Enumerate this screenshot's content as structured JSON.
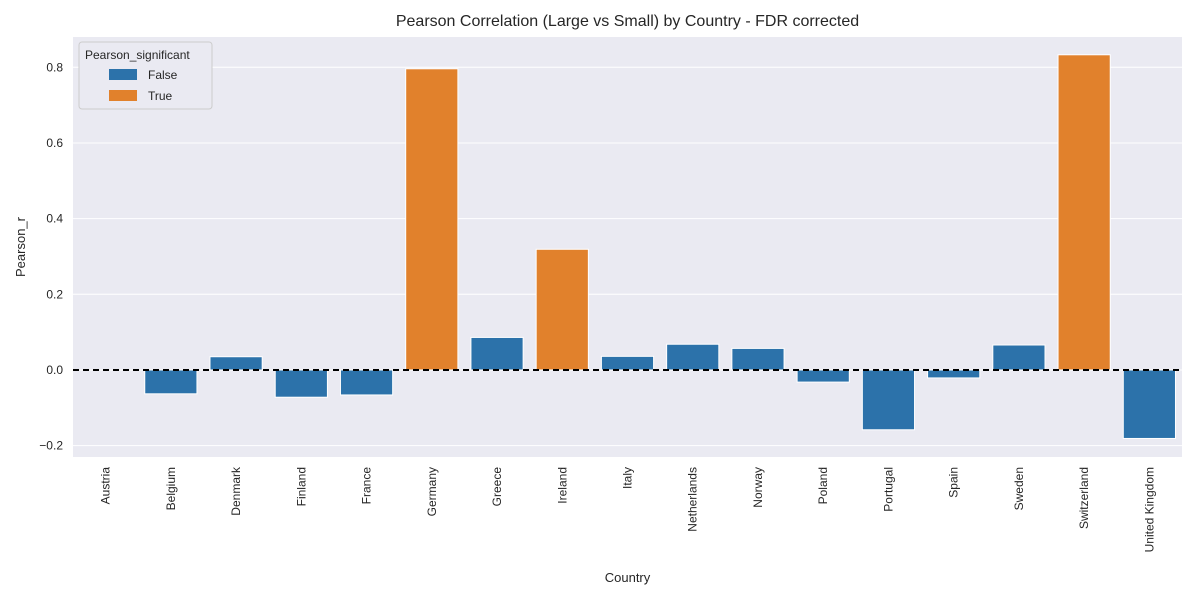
{
  "chart_data": {
    "type": "bar",
    "title": "Pearson Correlation (Large vs Small) by Country - FDR corrected",
    "xlabel": "Country",
    "ylabel": "Pearson_r",
    "categories": [
      "Austria",
      "Belgium",
      "Denmark",
      "Finland",
      "France",
      "Germany",
      "Greece",
      "Ireland",
      "Italy",
      "Netherlands",
      "Norway",
      "Poland",
      "Portugal",
      "Spain",
      "Sweden",
      "Switzerland",
      "United Kingdom"
    ],
    "values": [
      0.0,
      -0.063,
      0.035,
      -0.072,
      -0.066,
      0.796,
      0.086,
      0.319,
      0.036,
      0.068,
      0.057,
      -0.032,
      -0.158,
      -0.021,
      0.066,
      0.833,
      -0.181
    ],
    "significant": [
      false,
      false,
      false,
      false,
      false,
      true,
      false,
      true,
      false,
      false,
      false,
      false,
      false,
      false,
      false,
      true,
      false
    ],
    "ylim": [
      -0.23,
      0.88
    ],
    "yticks": [
      -0.2,
      0.0,
      0.2,
      0.4,
      0.6,
      0.8
    ],
    "ytick_labels": [
      "−0.2",
      "0.0",
      "0.2",
      "0.4",
      "0.6",
      "0.8"
    ],
    "reference_line": {
      "y": 0.0,
      "style": "dashed",
      "color": "#000000"
    },
    "legend": {
      "title": "Pearson_significant",
      "placement": "top-left",
      "entries": [
        {
          "label": "False",
          "color": "#2c72aa"
        },
        {
          "label": "True",
          "color": "#e1812c"
        }
      ]
    },
    "colors": {
      "false": "#2c72aa",
      "true": "#e1812c",
      "background": "#eaeaf2",
      "grid": "#ffffff"
    },
    "grid": true
  }
}
